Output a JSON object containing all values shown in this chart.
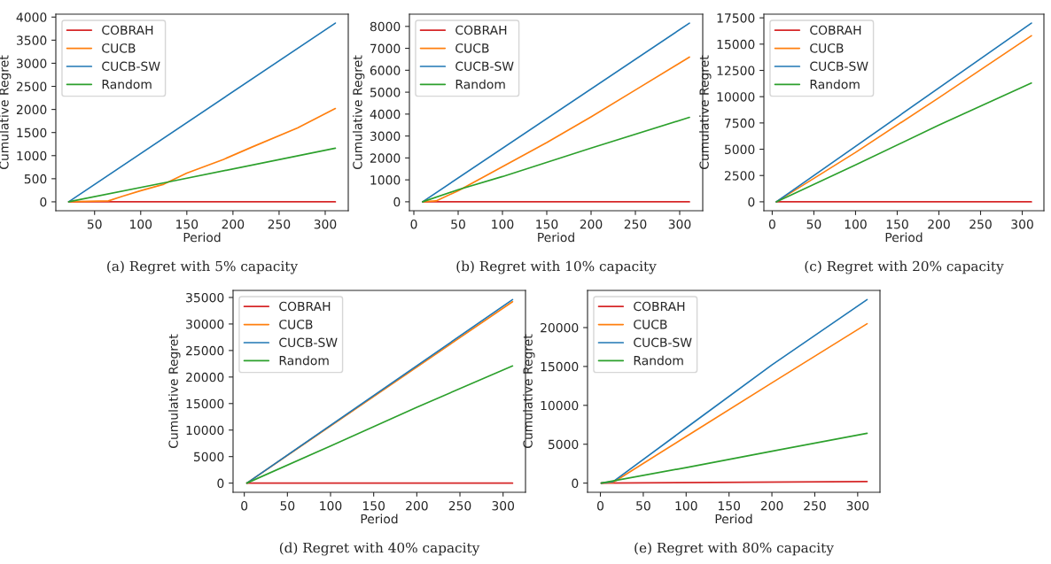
{
  "chart_data": [
    {
      "type": "line",
      "xlabel": "Period",
      "ylabel": "Cumulative Regret",
      "xlim": [
        8,
        325
      ],
      "xticks": [
        50,
        100,
        150,
        200,
        250,
        300
      ],
      "ylim": [
        -193,
        4063
      ],
      "yticks": [
        0,
        500,
        1000,
        1500,
        2000,
        2500,
        3000,
        3500,
        4000
      ],
      "legend": "top left",
      "annotations": [
        "(a) Regret with 5% capacity"
      ],
      "series": [
        {
          "name": "COBRAH",
          "color": "#d62728",
          "x": [
            22,
            311
          ],
          "values": [
            0,
            0
          ]
        },
        {
          "name": "CUCB",
          "color": "#ff7f0e",
          "x": [
            22,
            65,
            80,
            100,
            125,
            150,
            190,
            220,
            270,
            311
          ],
          "values": [
            0,
            20,
            120,
            240,
            380,
            620,
            920,
            1180,
            1600,
            2020
          ]
        },
        {
          "name": "CUCB-SW",
          "color": "#1f77b4",
          "x": [
            22,
            311
          ],
          "values": [
            0,
            3870
          ]
        },
        {
          "name": "Random",
          "color": "#2ca02c",
          "x": [
            22,
            130,
            311
          ],
          "values": [
            0,
            430,
            1160
          ]
        }
      ]
    },
    {
      "type": "line",
      "xlabel": "Period",
      "ylabel": "Cumulative Regret",
      "xlim": [
        -5,
        326
      ],
      "xticks": [
        0,
        50,
        100,
        150,
        200,
        250,
        300
      ],
      "ylim": [
        -408,
        8558
      ],
      "yticks": [
        0,
        1000,
        2000,
        3000,
        4000,
        5000,
        6000,
        7000,
        8000
      ],
      "legend": "top left",
      "annotations": [
        "(b) Regret with 10% capacity"
      ],
      "series": [
        {
          "name": "COBRAH",
          "color": "#d62728",
          "x": [
            10,
            311
          ],
          "values": [
            0,
            0
          ]
        },
        {
          "name": "CUCB",
          "color": "#ff7f0e",
          "x": [
            10,
            25,
            50,
            100,
            150,
            200,
            250,
            311
          ],
          "values": [
            0,
            40,
            500,
            1600,
            2700,
            3870,
            5100,
            6600
          ]
        },
        {
          "name": "CUCB-SW",
          "color": "#1f77b4",
          "x": [
            10,
            311
          ],
          "values": [
            0,
            8150
          ]
        },
        {
          "name": "Random",
          "color": "#2ca02c",
          "x": [
            10,
            50,
            100,
            200,
            311
          ],
          "values": [
            0,
            550,
            1150,
            2450,
            3850
          ]
        }
      ]
    },
    {
      "type": "line",
      "xlabel": "Period",
      "ylabel": "Cumulative Regret",
      "xlim": [
        -10,
        326
      ],
      "xticks": [
        0,
        50,
        100,
        150,
        200,
        250,
        300
      ],
      "ylim": [
        -850,
        17850
      ],
      "yticks": [
        0,
        2500,
        5000,
        7500,
        10000,
        12500,
        15000,
        17500
      ],
      "legend": "top left",
      "annotations": [
        "(c) Regret with 20% capacity"
      ],
      "series": [
        {
          "name": "COBRAH",
          "color": "#d62728",
          "x": [
            5,
            311
          ],
          "values": [
            0,
            0
          ]
        },
        {
          "name": "CUCB",
          "color": "#ff7f0e",
          "x": [
            5,
            100,
            200,
            311
          ],
          "values": [
            0,
            4700,
            9900,
            15800
          ]
        },
        {
          "name": "CUCB-SW",
          "color": "#1f77b4",
          "x": [
            5,
            311
          ],
          "values": [
            0,
            17000
          ]
        },
        {
          "name": "Random",
          "color": "#2ca02c",
          "x": [
            5,
            100,
            200,
            311
          ],
          "values": [
            0,
            3500,
            7300,
            11300
          ]
        }
      ]
    },
    {
      "type": "line",
      "xlabel": "Period",
      "ylabel": "Cumulative Regret",
      "xlim": [
        -13,
        326
      ],
      "xticks": [
        0,
        50,
        100,
        150,
        200,
        250,
        300
      ],
      "ylim": [
        -1730,
        36330
      ],
      "yticks": [
        0,
        5000,
        10000,
        15000,
        20000,
        25000,
        30000,
        35000
      ],
      "legend": "top left",
      "annotations": [
        "(d) Regret with 40% capacity"
      ],
      "series": [
        {
          "name": "COBRAH",
          "color": "#d62728",
          "x": [
            3,
            311
          ],
          "values": [
            0,
            0
          ]
        },
        {
          "name": "CUCB",
          "color": "#ff7f0e",
          "x": [
            3,
            311
          ],
          "values": [
            0,
            34200
          ]
        },
        {
          "name": "CUCB-SW",
          "color": "#1f77b4",
          "x": [
            3,
            311
          ],
          "values": [
            0,
            34600
          ]
        },
        {
          "name": "Random",
          "color": "#2ca02c",
          "x": [
            3,
            100,
            200,
            311
          ],
          "values": [
            0,
            7000,
            14300,
            22100
          ]
        }
      ]
    },
    {
      "type": "line",
      "xlabel": "Period",
      "ylabel": "Cumulative Regret",
      "xlim": [
        -15,
        326
      ],
      "xticks": [
        0,
        50,
        100,
        150,
        200,
        250,
        300
      ],
      "ylim": [
        -1180,
        24780
      ],
      "yticks": [
        0,
        5000,
        10000,
        15000,
        20000
      ],
      "legend": "top left",
      "annotations": [
        "(e) Regret with 80% capacity"
      ],
      "series": [
        {
          "name": "COBRAH",
          "color": "#d62728",
          "x": [
            1,
            311
          ],
          "values": [
            0,
            200
          ]
        },
        {
          "name": "CUCB",
          "color": "#ff7f0e",
          "x": [
            1,
            15,
            100,
            200,
            311
          ],
          "values": [
            0,
            100,
            6000,
            12900,
            20500
          ]
        },
        {
          "name": "CUCB-SW",
          "color": "#1f77b4",
          "x": [
            1,
            15,
            100,
            200,
            311
          ],
          "values": [
            0,
            200,
            7100,
            15200,
            23600
          ]
        },
        {
          "name": "Random",
          "color": "#2ca02c",
          "x": [
            1,
            100,
            200,
            311
          ],
          "values": [
            0,
            2000,
            4100,
            6400
          ]
        }
      ]
    }
  ]
}
